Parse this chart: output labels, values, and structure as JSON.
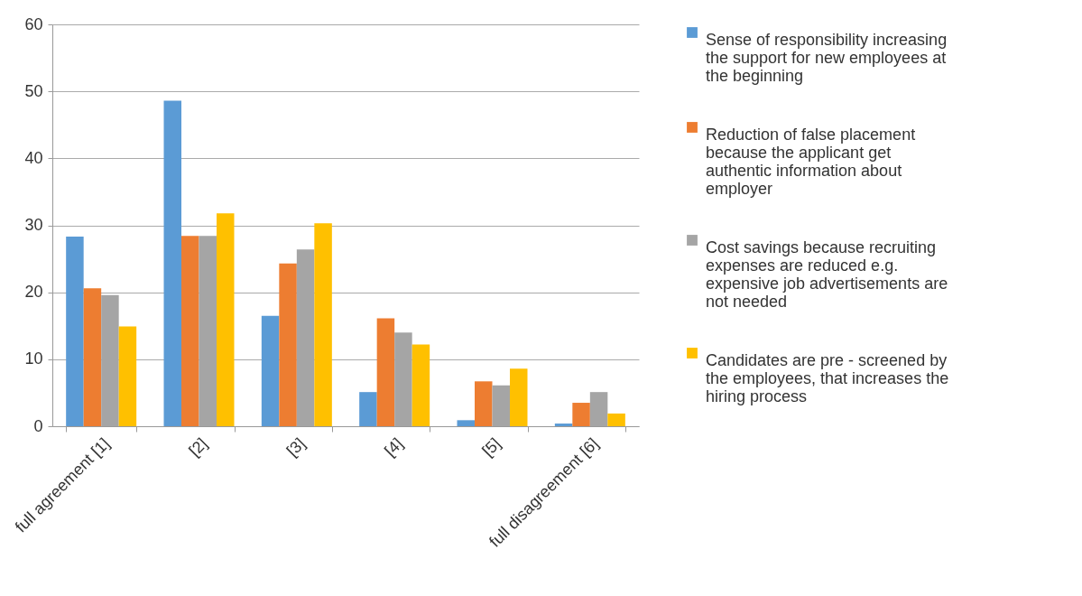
{
  "chart_data": {
    "type": "bar",
    "categories": [
      "full agreement  [1]",
      "[2]",
      "[3]",
      "[4]",
      "[5]",
      "full disagreement [6]"
    ],
    "series": [
      {
        "name": "Sense of responsibility increasing the support for new employees at the beginning",
        "color": "#5b9bd5",
        "values": [
          28.3,
          48.6,
          16.5,
          5.1,
          0.9,
          0.4
        ]
      },
      {
        "name": "Reduction of false placement because the applicant get authentic information about employer",
        "color": "#ed7d31",
        "values": [
          20.6,
          28.4,
          24.3,
          16.1,
          6.7,
          3.5
        ]
      },
      {
        "name": "Cost savings because recruiting expenses are reduced e.g. expensive job advertisements are not needed",
        "color": "#a5a5a5",
        "values": [
          19.6,
          28.4,
          26.4,
          14.0,
          6.1,
          5.1
        ]
      },
      {
        "name": "Candidates are pre - screened by the employees, that increases the hiring process",
        "color": "#ffc000",
        "values": [
          14.9,
          31.8,
          30.3,
          12.2,
          8.6,
          1.9
        ]
      }
    ],
    "ylim": [
      0,
      60
    ],
    "yticks": [
      0,
      10,
      20,
      30,
      40,
      50,
      60
    ],
    "grid": "y",
    "legend": "right"
  }
}
